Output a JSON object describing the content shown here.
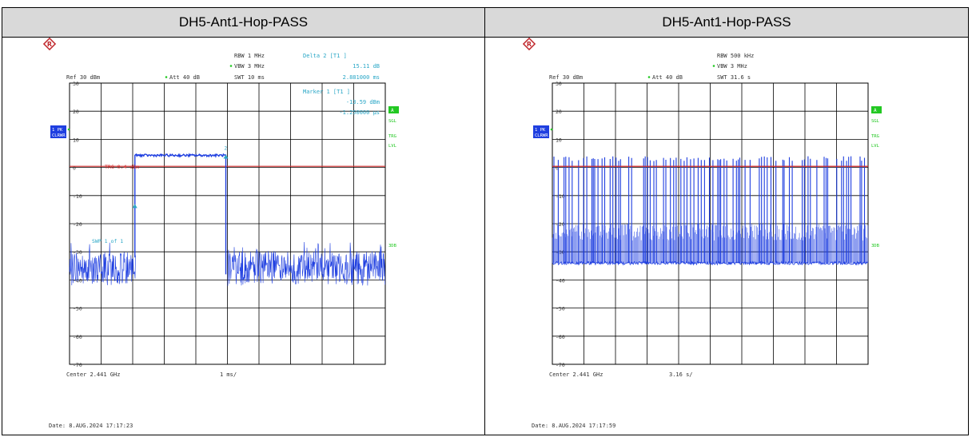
{
  "colors": {
    "trace": "#1f3fe0",
    "cyan": "#2aa7c7",
    "limit": "#d02a2a",
    "grid": "#000000",
    "tag_bg": "#1f3fe0",
    "green": "#22c822"
  },
  "panels": [
    {
      "title": "DH5-Ant1-Hop-PASS",
      "ref": "Ref  30 dBm",
      "att": "Att  40 dB",
      "rbw": "RBW  1 MHz",
      "vbw": "VBW  3 MHz",
      "swt": "SWT  10 ms",
      "offset": "Offset  11.7 dB",
      "delta_label": "Delta 2 [T1 ]",
      "delta_val": "15.11 dB",
      "delta_time": "2.881000 ms",
      "marker_label": "Marker 1 [T1 ]",
      "marker_val": "-13.59 dBm",
      "marker_time": "-1.250000 µs",
      "trg_label": "TRG 0.4 dBm",
      "swp_label": "SWP     1 of     1",
      "center": "Center 2.441 GHz",
      "span": "1 ms/",
      "date": "Date: 8.AUG.2024  17:17:23",
      "side_left_top": "1 PK",
      "side_left_bot": "CLRWR",
      "side_a": "A",
      "side_sgl": "SGL",
      "side_trg": "TRG",
      "side_lvl": "LVL",
      "side_3db": "3DB",
      "marker_tag_1": "1",
      "marker_tag_2": "2"
    },
    {
      "title": "DH5-Ant1-Hop-PASS",
      "ref": "Ref  30 dBm",
      "att": "Att  40 dB",
      "rbw": "RBW  500 kHz",
      "vbw": "VBW  3 MHz",
      "swt": "SWT  31.6 s",
      "offset": "Offset  11.7 dB",
      "center": "Center 2.441 GHz",
      "span": "3.16 s/",
      "date": "Date: 8.AUG.2024  17:17:59",
      "side_left_top": "1 PK",
      "side_left_bot": "CLRWR",
      "side_a": "A",
      "side_sgl": "SGL",
      "side_trg": "TRG",
      "side_lvl": "LVL",
      "side_3db": "3DB"
    }
  ],
  "chart_data": [
    {
      "type": "line",
      "title": "DH5-Ant1-Hop-PASS",
      "y_ticks": [
        "30",
        "20",
        "10",
        "0",
        "-10",
        "-20",
        "-30",
        "-40",
        "-50",
        "-60",
        "-70"
      ],
      "ylim": [
        -70,
        30
      ],
      "x_range_ms": [
        0,
        10
      ],
      "trigger_level_dbm": 0.4,
      "series": [
        {
          "name": "1 PK",
          "x": [
            0,
            0.7,
            0.7,
            1.9,
            1.9,
            2.55,
            2.55,
            5.05,
            5.05,
            5.55,
            5.55,
            10
          ],
          "y": [
            -32,
            -32,
            -12,
            -12,
            4.5,
            4.5,
            4.5,
            4.5,
            1,
            1,
            -32,
            -32
          ]
        }
      ],
      "markers": [
        {
          "label": "1",
          "x_ms": 2.0,
          "y_dbm": -13.59
        },
        {
          "label": "2",
          "x_ms": 4.9,
          "y_dbm": 1.5
        }
      ]
    },
    {
      "type": "line",
      "title": "DH5-Ant1-Hop-PASS",
      "y_ticks": [
        "30",
        "20",
        "10",
        "0",
        "-10",
        "-20",
        "-30",
        "-40",
        "-50",
        "-60",
        "-70"
      ],
      "ylim": [
        -70,
        30
      ],
      "x_range_s": [
        0,
        31.6
      ],
      "trigger_level_dbm": 0.4,
      "noise_floor_dbm": -34,
      "burst_top_dbm": 4,
      "burst_mid_dbm": -22
    }
  ]
}
